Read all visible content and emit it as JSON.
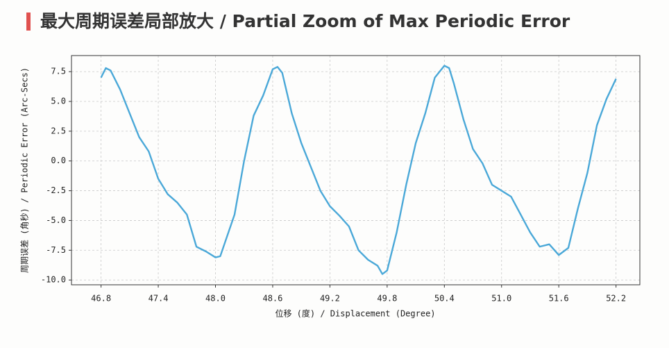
{
  "chart_data": {
    "type": "line",
    "title": "最大周期误差局部放大 / Partial Zoom of Max Periodic Error",
    "x_label": "位移 (度) / Displacement (Degree)",
    "y_label": "周期误差 (角秒) / Periodic Error (Arc-Secs)",
    "x": [
      46.8,
      46.85,
      46.9,
      47.0,
      47.1,
      47.2,
      47.3,
      47.4,
      47.5,
      47.6,
      47.7,
      47.8,
      47.9,
      48.0,
      48.05,
      48.2,
      48.3,
      48.4,
      48.5,
      48.6,
      48.65,
      48.7,
      48.8,
      48.9,
      49.0,
      49.1,
      49.2,
      49.3,
      49.4,
      49.5,
      49.6,
      49.7,
      49.75,
      49.8,
      49.9,
      50.0,
      50.1,
      50.2,
      50.3,
      50.4,
      50.45,
      50.5,
      50.6,
      50.7,
      50.8,
      50.9,
      51.0,
      51.1,
      51.2,
      51.3,
      51.4,
      51.5,
      51.6,
      51.7,
      51.8,
      51.9,
      52.0,
      52.1,
      52.2
    ],
    "series": [
      {
        "name": "Periodic Error",
        "color": "#4aa8d8",
        "values": [
          7.0,
          7.8,
          7.6,
          6.0,
          4.0,
          2.0,
          0.8,
          -1.5,
          -2.8,
          -3.5,
          -4.5,
          -7.2,
          -7.6,
          -8.1,
          -8.0,
          -4.5,
          0.0,
          3.8,
          5.5,
          7.7,
          7.9,
          7.4,
          4.0,
          1.5,
          -0.5,
          -2.5,
          -3.8,
          -4.6,
          -5.5,
          -7.5,
          -8.3,
          -8.8,
          -9.5,
          -9.2,
          -6.0,
          -2.0,
          1.5,
          4.0,
          7.0,
          8.0,
          7.8,
          6.5,
          3.5,
          1.0,
          -0.2,
          -2.0,
          -2.5,
          -3.0,
          -4.5,
          -6.0,
          -7.2,
          -7.0,
          -7.9,
          -7.3,
          -4.0,
          -1.0,
          3.0,
          5.2,
          6.9
        ]
      }
    ],
    "xlim": [
      46.49,
      52.45
    ],
    "ylim": [
      -10.4,
      8.85
    ],
    "xticks": [
      46.8,
      47.4,
      {
        "value": 48,
        "label": "48.0"
      },
      48.6,
      49.2,
      49.8,
      50.4,
      {
        "value": 51,
        "label": "51.0"
      },
      51.6,
      52.2
    ],
    "yticks": [
      {
        "value": 7.5,
        "label": "7.5"
      },
      {
        "value": 5,
        "label": "5.0"
      },
      {
        "value": 2.5,
        "label": "2.5"
      },
      {
        "value": 0,
        "label": "0.0"
      },
      {
        "value": -2.5,
        "label": "-2.5"
      },
      {
        "value": -5,
        "label": "-5.0"
      },
      {
        "value": -7.5,
        "label": "-7.5"
      },
      {
        "value": -10,
        "label": "-10.0"
      }
    ],
    "grid": true
  }
}
